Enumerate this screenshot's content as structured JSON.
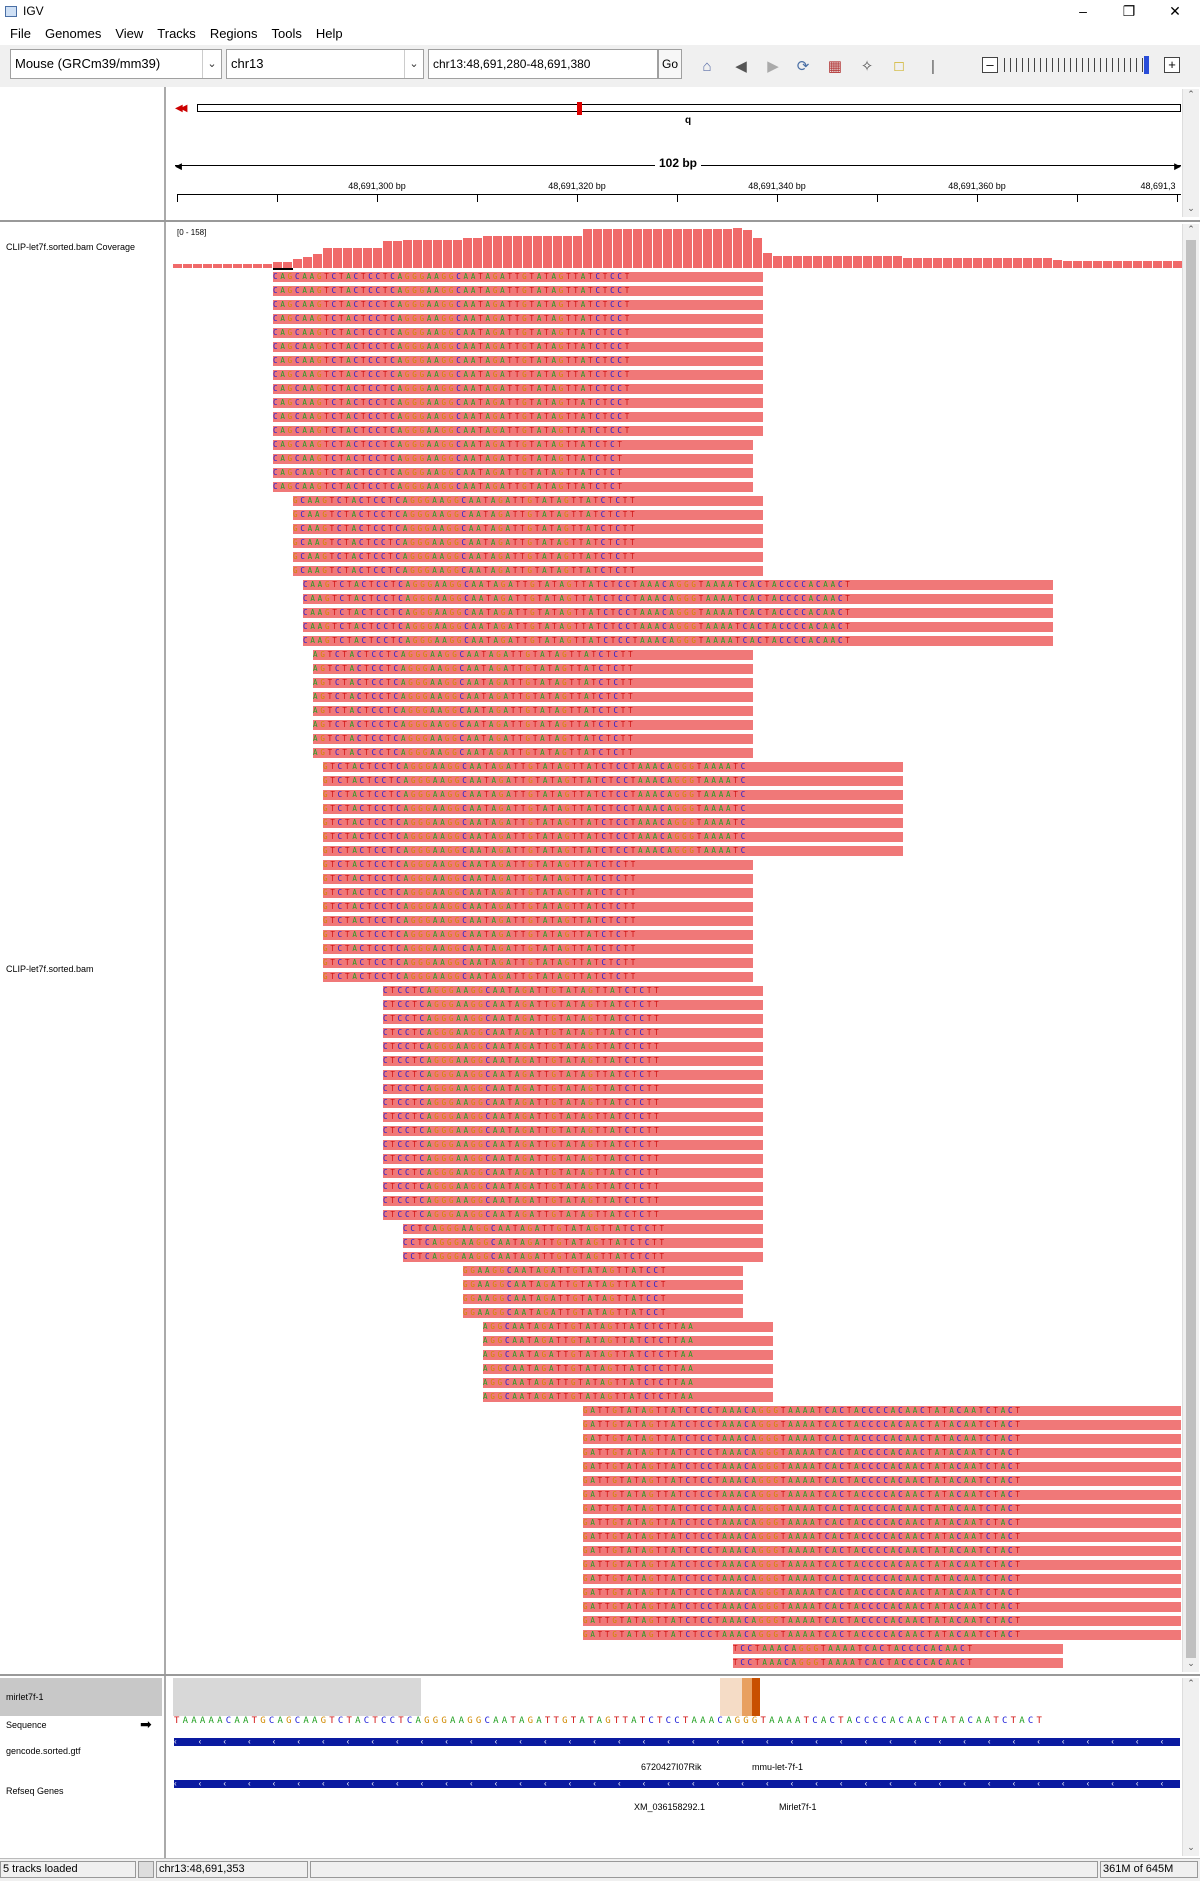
{
  "window": {
    "title": "IGV",
    "min_icon": "minimize-icon",
    "max_icon": "maximize-icon",
    "close_icon": "close-icon"
  },
  "menu": [
    "File",
    "Genomes",
    "View",
    "Tracks",
    "Regions",
    "Tools",
    "Help"
  ],
  "toolbar": {
    "genome": "Mouse (GRCm39/mm39)",
    "chromosome": "chr13",
    "locus": "chr13:48,691,280-48,691,380",
    "go_label": "Go"
  },
  "ideogram": {
    "arm_label": "q"
  },
  "ruler": {
    "span_label": "102 bp",
    "ticks": [
      {
        "label": "48,691,300 bp",
        "pos": 0.2
      },
      {
        "label": "48,691,320 bp",
        "pos": 0.4
      },
      {
        "label": "48,691,340 bp",
        "pos": 0.6
      },
      {
        "label": "48,691,360 bp",
        "pos": 0.8
      },
      {
        "label": "48,691,3",
        "pos": 0.995
      }
    ]
  },
  "tracks": {
    "coverage_label": "CLIP-let7f.sorted.bam Coverage",
    "coverage_range": "[0 - 158]",
    "bam_label": "CLIP-let7f.sorted.bam",
    "feature_label": "mirlet7f-1",
    "sequence_label": "Sequence",
    "gencode_label": "gencode.sorted.gtf",
    "refseq_label": "Refseq Genes"
  },
  "sequence": "TAAAAACAATGCAGCAAGTCTACTCCTCAGGGAAGGCAATAGATTGTATAGTTATCTCCTAAACAGGGTAAAATCACTACCCCACAACTATACAATCTACT",
  "reads": [
    {
      "seq": "CAGCAAGTCTACTCCTCAGGGAAGGCAATAGATTGTATAGTTATCTCCT",
      "count": 12,
      "start": 10
    },
    {
      "seq": "CAGCAAGTCTACTCCTCAGGGAAGGCAATAGATTGTATAGTTATCTCT",
      "count": 4,
      "start": 10
    },
    {
      "seq": "GCAAGTCTACTCCTCAGGGAAGGCAATAGATTGTATAGTTATCTCTT",
      "count": 6,
      "start": 12
    },
    {
      "seq": "CAAGTCTACTCCTCAGGGAAGGCAATAGATTGTATAGTTATCTCCTAAACAGGGTAAAATCACTACCCCACAACT",
      "count": 5,
      "start": 13
    },
    {
      "seq": "AGTCTACTCCTCAGGGAAGGCAATAGATTGTATAGTTATCTCTT",
      "count": 8,
      "start": 14
    },
    {
      "seq": "GTCTACTCCTCAGGGAAGGCAATAGATTGTATAGTTATCTCCTAAACAGGGTAAAATC",
      "count": 7,
      "start": 15
    },
    {
      "seq": "GTCTACTCCTCAGGGAAGGCAATAGATTGTATAGTTATCTCTT",
      "count": 9,
      "start": 15
    },
    {
      "seq": "CTCCTCAGGGAAGGCAATAGATTGTATAGTTATCTCTT",
      "count": 17,
      "start": 21
    },
    {
      "seq": "CCTCAGGGAAGGCAATAGATTGTATAGTTATCTCTT",
      "count": 3,
      "start": 23
    },
    {
      "seq": "GGAAGGCAATAGATTGTATAGTTATCCT",
      "count": 4,
      "start": 29
    },
    {
      "seq": "AGGCAATAGATTGTATAGTTATCTCTTAA",
      "count": 6,
      "start": 31
    },
    {
      "seq": "GATTGTATAGTTATCTCCTAAACAGGGTAAAATCACTACCCCACAACTATACAATCTACT",
      "count": 17,
      "start": 41
    },
    {
      "seq": "TCCTAAACAGGGTAAAATCACTACCCCACAACT",
      "count": 2,
      "start": 56
    }
  ],
  "features": {
    "gencode_genes": [
      "6720427I07Rik",
      "mmu-let-7f-1"
    ],
    "refseq_genes": [
      "XM_036158292.1",
      "Mirlet7f-1"
    ]
  },
  "status": {
    "tracks_loaded": "5 tracks loaded",
    "position": "chr13:48,691,353",
    "memory": "361M of 645M"
  },
  "colors": {
    "read": "#f07878",
    "coverage": "#f06a6a",
    "gene": "#0a1aa0",
    "A": "#22a022",
    "C": "#1a1ad8",
    "G": "#d18a00",
    "T": "#d01010"
  }
}
